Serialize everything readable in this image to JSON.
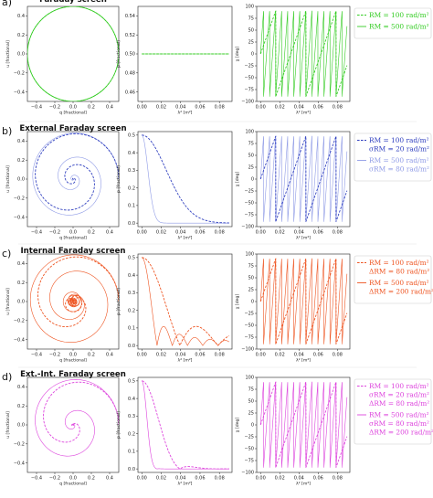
{
  "rows": [
    {
      "label": "a)",
      "title": "Faraday screen",
      "color": "#33cc22",
      "legend": [
        {
          "style": "dashed",
          "lines": [
            "RM = 100 rad/m²"
          ]
        },
        {
          "style": "solid",
          "lines": [
            "RM = 500 rad/m²"
          ]
        }
      ]
    },
    {
      "label": "b)",
      "title": "External Faraday screen",
      "color": "#2f3fbf",
      "color_light": "#8f9be6",
      "legend": [
        {
          "style": "dashed",
          "lines": [
            "RM = 100 rad/m²",
            "σRM = 20 rad/m²"
          ]
        },
        {
          "style": "solid",
          "lines": [
            "RM = 500 rad/m²",
            "σRM = 80 rad/m²"
          ]
        }
      ]
    },
    {
      "label": "c)",
      "title": "Internal Faraday screen",
      "color": "#ee5522",
      "legend": [
        {
          "style": "dashed",
          "lines": [
            "RM = 100 rad/m²",
            "ΔRM = 80 rad/m²"
          ]
        },
        {
          "style": "solid",
          "lines": [
            "RM = 500 rad/m²",
            "ΔRM = 200 rad/m²"
          ]
        }
      ]
    },
    {
      "label": "d)",
      "title": "Ext.-Int. Faraday screen",
      "color": "#dd44dd",
      "legend": [
        {
          "style": "dashed",
          "lines": [
            "RM = 100 rad/m²",
            "σRM = 20 rad/m²",
            "ΔRM = 80 rad/m²"
          ]
        },
        {
          "style": "solid",
          "lines": [
            "RM = 500 rad/m²",
            "σRM = 80 rad/m²",
            "ΔRM = 200 rad/m²"
          ]
        }
      ]
    }
  ],
  "axes": {
    "q_label": "q [fractional]",
    "u_label": "u [fractional]",
    "p_label": "p [fractional]",
    "chi_label": "χ [deg]",
    "lambda_label": "λ² [m²]",
    "qu_xticks": [
      "−0.4",
      "−0.2",
      "0.0",
      "0.2",
      "0.4"
    ],
    "qu_yticks": [
      "0.4",
      "0.2",
      "0.0",
      "−0.2",
      "−0.4"
    ],
    "lambda_ticks": [
      "0.00",
      "0.02",
      "0.04",
      "0.06",
      "0.08"
    ],
    "p_ticks": [
      "0.5",
      "0.4",
      "0.3",
      "0.2",
      "0.1",
      "0.0"
    ],
    "p_ticks_a": [
      "0.54",
      "0.52",
      "0.50",
      "0.48",
      "0.46"
    ],
    "chi_ticks": [
      "100",
      "75",
      "50",
      "25",
      "0",
      "−25",
      "−50",
      "−75",
      "−100"
    ]
  },
  "chart_data": [
    {
      "type": "line",
      "panel": "a-qu",
      "xlabel": "q [fractional]",
      "ylabel": "u [fractional]",
      "xlim": [
        -0.5,
        0.5
      ],
      "ylim": [
        -0.5,
        0.5
      ],
      "series": [
        {
          "name": "RM = 100 rad/m²",
          "shape": "circle",
          "radius": 0.5
        }
      ]
    },
    {
      "type": "line",
      "panel": "a-p",
      "xlabel": "λ² [m²]",
      "ylabel": "p [fractional]",
      "xlim": [
        0,
        0.09
      ],
      "ylim": [
        0.45,
        0.55
      ],
      "series": [
        {
          "name": "RM = 100 rad/m²",
          "p0": 0.5
        },
        {
          "name": "RM = 500 rad/m²",
          "p0": 0.5
        }
      ]
    },
    {
      "type": "line",
      "panel": "a-chi",
      "xlabel": "λ² [m²]",
      "ylabel": "χ [deg]",
      "xlim": [
        0,
        0.09
      ],
      "ylim": [
        -100,
        100
      ],
      "series": [
        {
          "name": "RM = 100 rad/m²",
          "RM": 100
        },
        {
          "name": "RM = 500 rad/m²",
          "RM": 500
        }
      ]
    },
    {
      "type": "line",
      "panel": "b",
      "xlabel": "λ² [m²]",
      "series": [
        {
          "name": "RM = 100 rad/m²",
          "RM": 100,
          "sigmaRM": 20
        },
        {
          "name": "RM = 500 rad/m²",
          "RM": 500,
          "sigmaRM": 80
        }
      ]
    },
    {
      "type": "line",
      "panel": "c",
      "xlabel": "λ² [m²]",
      "series": [
        {
          "name": "RM = 100 rad/m²",
          "RM": 100,
          "deltaRM": 80
        },
        {
          "name": "RM = 500 rad/m²",
          "RM": 500,
          "deltaRM": 200
        }
      ]
    },
    {
      "type": "line",
      "panel": "d",
      "xlabel": "λ² [m²]",
      "series": [
        {
          "name": "RM = 100 rad/m²",
          "RM": 100,
          "sigmaRM": 20,
          "deltaRM": 80
        },
        {
          "name": "RM = 500 rad/m²",
          "RM": 500,
          "sigmaRM": 80,
          "deltaRM": 200
        }
      ]
    }
  ]
}
